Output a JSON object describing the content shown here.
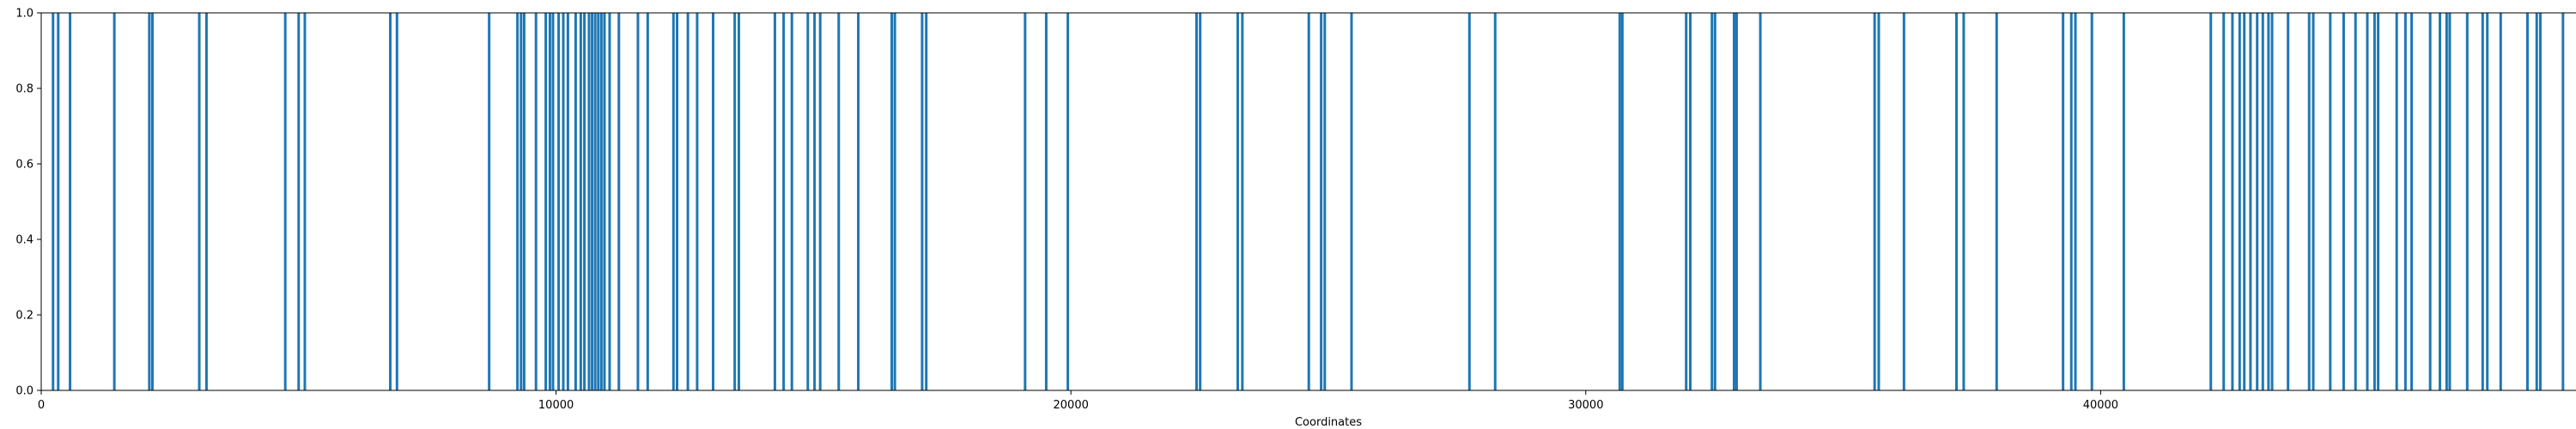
{
  "chart_data": {
    "type": "bar",
    "title": "",
    "xlabel": "Coordinates",
    "ylabel": "",
    "xlim": [
      0,
      50000
    ],
    "ylim": [
      0,
      1.0
    ],
    "grid": false,
    "x_ticks": [
      0,
      10000,
      20000,
      30000,
      40000,
      50000
    ],
    "y_ticks": [
      0.0,
      0.2,
      0.4,
      0.6,
      0.8,
      1.0
    ],
    "x_tick_labels": [
      "0",
      "10000",
      "20000",
      "30000",
      "40000",
      "50000"
    ],
    "y_tick_labels": [
      "0.0",
      "0.2",
      "0.4",
      "0.6",
      "0.8",
      "1.0"
    ],
    "series": [
      {
        "color": "#1f77b4",
        "value": 1.0,
        "x": [
          230,
          330,
          560,
          1420,
          2100,
          2160,
          3070,
          3210,
          4740,
          5000,
          5120,
          6780,
          6910,
          8700,
          9250,
          9320,
          9380,
          9610,
          9800,
          9880,
          9940,
          10050,
          10140,
          10230,
          10380,
          10480,
          10550,
          10640,
          10700,
          10760,
          10820,
          10880,
          10940,
          11040,
          11220,
          11590,
          11780,
          12280,
          12350,
          12560,
          12740,
          13050,
          13470,
          13550,
          14250,
          14420,
          14580,
          14890,
          15020,
          15130,
          15490,
          15870,
          16520,
          16580,
          17110,
          17190,
          19110,
          19520,
          19940,
          22440,
          22510,
          23240,
          23330,
          24620,
          24860,
          24930,
          25450,
          27740,
          28240,
          30660,
          30710,
          31950,
          32030,
          32450,
          32510,
          32880,
          32930,
          33390,
          35610,
          35690,
          36180,
          37200,
          37340,
          37980,
          39270,
          39430,
          39510,
          39830,
          40450,
          42140,
          42390,
          42560,
          42700,
          42790,
          42910,
          43040,
          43150,
          43260,
          43330,
          43640,
          44050,
          44130,
          44460,
          44720,
          44950,
          45180,
          45320,
          45390,
          45750,
          45920,
          46040,
          46400,
          46590,
          46720,
          46780,
          47120,
          47420,
          47510,
          47770,
          48290,
          48470,
          48540,
          48980,
          49300,
          49380,
          49440,
          49580,
          49840,
          49990
        ]
      }
    ]
  }
}
